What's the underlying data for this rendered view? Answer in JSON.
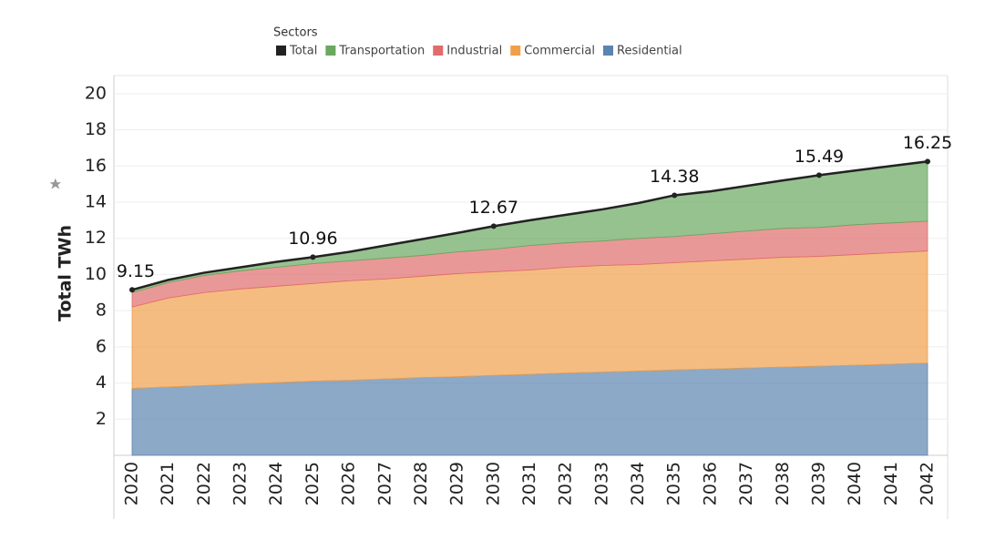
{
  "chart_data": {
    "type": "stacked-area",
    "legend_title": "Sectors",
    "y_label": "Total TWh",
    "categories": [
      "2020",
      "2021",
      "2022",
      "2023",
      "2024",
      "2025",
      "2026",
      "2027",
      "2028",
      "2029",
      "2030",
      "2031",
      "2032",
      "2033",
      "2034",
      "2035",
      "2036",
      "2037",
      "2038",
      "2039",
      "2040",
      "2041",
      "2042"
    ],
    "series": [
      {
        "name": "Total",
        "type": "line",
        "color": "#222222",
        "values": [
          9.15,
          9.7,
          10.1,
          10.4,
          10.7,
          10.96,
          11.25,
          11.6,
          11.95,
          12.3,
          12.67,
          13.0,
          13.3,
          13.6,
          13.95,
          14.38,
          14.6,
          14.9,
          15.2,
          15.49,
          15.75,
          16.0,
          16.25
        ],
        "value_labels": [
          "9.15",
          null,
          null,
          null,
          null,
          "10.96",
          null,
          null,
          null,
          null,
          "12.67",
          null,
          null,
          null,
          null,
          "14.38",
          null,
          null,
          null,
          "15.49",
          null,
          null,
          "16.25"
        ]
      },
      {
        "name": "Transportation",
        "type": "area",
        "color": "#6aa85f",
        "values": [
          0.15,
          0.15,
          0.15,
          0.2,
          0.3,
          0.36,
          0.5,
          0.7,
          0.9,
          1.05,
          1.27,
          1.4,
          1.55,
          1.75,
          1.95,
          2.28,
          2.35,
          2.5,
          2.65,
          2.89,
          3.0,
          3.15,
          3.3
        ]
      },
      {
        "name": "Industrial",
        "type": "area",
        "color": "#e06c6c",
        "values": [
          0.8,
          0.85,
          0.95,
          1.0,
          1.05,
          1.1,
          1.1,
          1.15,
          1.15,
          1.2,
          1.25,
          1.35,
          1.35,
          1.35,
          1.45,
          1.45,
          1.5,
          1.55,
          1.6,
          1.6,
          1.65,
          1.65,
          1.65
        ]
      },
      {
        "name": "Commercial",
        "type": "area",
        "color": "#f0a04b",
        "values": [
          4.5,
          4.92,
          5.14,
          5.26,
          5.33,
          5.4,
          5.5,
          5.53,
          5.6,
          5.7,
          5.73,
          5.77,
          5.85,
          5.9,
          5.89,
          5.93,
          5.98,
          6.02,
          6.07,
          6.07,
          6.12,
          6.16,
          6.2
        ]
      },
      {
        "name": "Residential",
        "type": "area",
        "color": "#5b84b1",
        "values": [
          3.7,
          3.78,
          3.86,
          3.94,
          4.02,
          4.1,
          4.15,
          4.22,
          4.3,
          4.35,
          4.42,
          4.48,
          4.55,
          4.6,
          4.66,
          4.72,
          4.77,
          4.83,
          4.88,
          4.93,
          4.98,
          5.04,
          5.1
        ]
      }
    ],
    "ylim": [
      0,
      21
    ],
    "yticks": [
      2,
      4,
      6,
      8,
      10,
      12,
      14,
      16,
      18,
      20
    ],
    "grid": true
  }
}
